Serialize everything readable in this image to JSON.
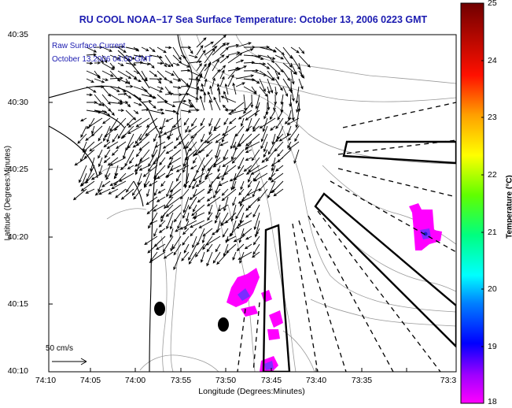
{
  "title": "RU COOL  NOAA−17  Sea Surface Temperature:  October 13, 2006 0223 GMT",
  "current_annotation": {
    "line1": "Raw Surface Current",
    "line2": "October 13,2006 04:00 GMT"
  },
  "axes": {
    "xlabel": "Longitude (Degrees:Minutes)",
    "ylabel": "Latitude (Degrees:Minutes)",
    "xticks": [
      "74:10",
      "74:05",
      "74:00",
      "73:55",
      "73:50",
      "73:45",
      "73:40",
      "73:35",
      "73:3"
    ],
    "yticks": [
      "40:35",
      "40:30",
      "40:25",
      "40:20",
      "40:15",
      "40:10"
    ]
  },
  "colorbar": {
    "label": "Temperature (°C)",
    "ticks": [
      "25",
      "24",
      "23",
      "22",
      "21",
      "20",
      "19",
      "18"
    ],
    "min": 18,
    "max": 25,
    "colors": [
      "#ff00ff",
      "#7a00ff",
      "#0000ff",
      "#0090ff",
      "#00ffff",
      "#00ff80",
      "#80ff00",
      "#ffff00",
      "#ffa000",
      "#ff2000",
      "#b00000",
      "#7a0000"
    ]
  },
  "scale_vector": {
    "label": "50 cm/s"
  },
  "colors": {
    "title": "#1b1bb0",
    "coast": "#000000",
    "contour": "#999999",
    "vector": "#000000",
    "sst_patch": "#ff00ff",
    "sst_patch_core": "#7a2cff"
  }
}
